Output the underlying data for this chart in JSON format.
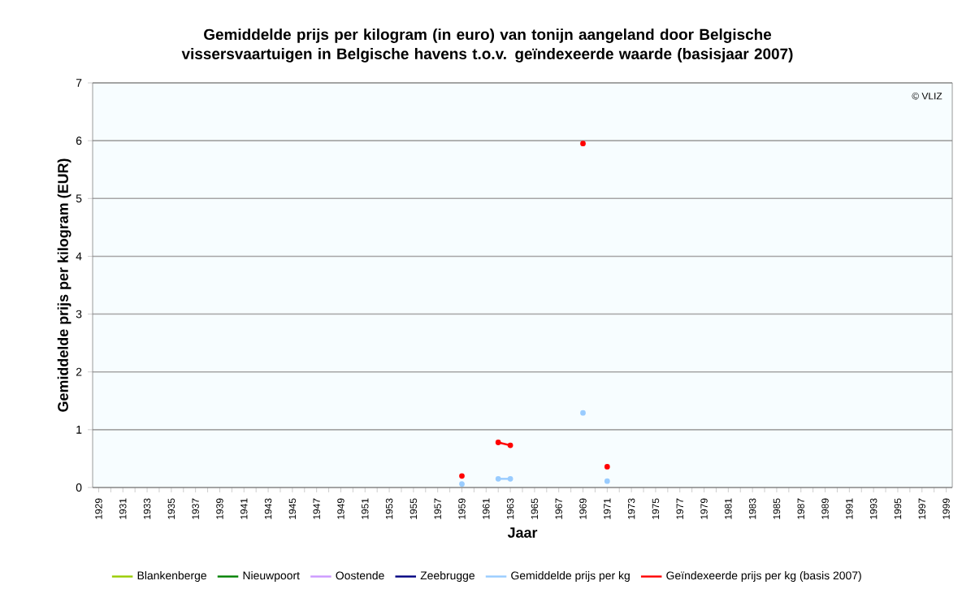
{
  "chart_data": {
    "type": "line",
    "title": "Gemiddelde prijs per kilogram (in euro) van tonijn aangeland door Belgische vissersvaartuigen in Belgische havens t.o.v. geïndexeerde waarde (basisjaar 2007)",
    "xlabel": "Jaar",
    "ylabel": "Gemiddelde prijs per kilogram (EUR)",
    "annotations": [
      "© VLIZ"
    ],
    "categories": [
      "1929",
      null,
      "1931",
      null,
      "1933",
      null,
      "1935",
      null,
      "1937",
      null,
      "1939",
      null,
      "1941",
      null,
      "1943",
      null,
      "1945",
      null,
      "1947",
      null,
      "1949",
      null,
      "1951",
      null,
      "1953",
      null,
      "1955",
      null,
      "1957",
      null,
      "1959",
      null,
      "1961",
      null,
      "1963",
      null,
      "1965",
      null,
      "1967",
      null,
      "1969",
      null,
      "1971",
      null,
      "1973",
      null,
      "1975",
      null,
      "1977",
      null,
      "1979",
      null,
      "1981",
      null,
      "1983",
      null,
      "1985",
      null,
      "1987",
      null,
      "1989",
      null,
      "1991",
      null,
      "1993",
      null,
      "1995",
      null,
      "1997",
      null,
      "1999"
    ],
    "ylim": [
      0,
      7
    ],
    "yticks": [
      0,
      1,
      2,
      3,
      4,
      5,
      6,
      7
    ],
    "grid": "y",
    "legend": "bottom",
    "marker": "circle",
    "series": [
      {
        "name": "Blankenberge",
        "color": "#99cc00",
        "values": [
          null,
          null,
          null,
          null,
          null,
          null,
          null,
          null,
          null,
          null,
          null,
          null,
          null,
          null,
          null,
          null,
          null,
          null,
          null,
          null,
          null,
          null,
          null,
          null,
          null,
          null,
          null,
          null,
          null,
          null,
          null,
          null,
          null,
          null,
          null,
          null,
          null,
          null,
          null,
          null,
          null,
          null,
          null,
          null,
          null,
          null,
          null,
          null,
          null,
          null,
          null,
          null,
          null,
          null,
          null,
          null,
          null,
          null,
          null,
          null,
          null,
          null,
          null,
          null,
          null,
          null,
          null,
          null,
          null,
          null,
          null
        ]
      },
      {
        "name": "Nieuwpoort",
        "color": "#008000",
        "values": [
          null,
          null,
          null,
          null,
          null,
          null,
          null,
          null,
          null,
          null,
          null,
          null,
          null,
          null,
          null,
          null,
          null,
          null,
          null,
          null,
          null,
          null,
          null,
          null,
          null,
          null,
          null,
          null,
          null,
          null,
          null,
          null,
          null,
          null,
          null,
          null,
          null,
          null,
          null,
          null,
          null,
          null,
          null,
          null,
          null,
          null,
          null,
          null,
          null,
          null,
          null,
          null,
          null,
          null,
          null,
          null,
          null,
          null,
          null,
          null,
          null,
          null,
          null,
          null,
          null,
          null,
          null,
          null,
          null,
          null,
          null
        ]
      },
      {
        "name": "Oostende",
        "color": "#cc99ff",
        "values": [
          null,
          null,
          null,
          null,
          null,
          null,
          null,
          null,
          null,
          null,
          null,
          null,
          null,
          null,
          null,
          null,
          null,
          null,
          null,
          null,
          null,
          null,
          null,
          null,
          null,
          null,
          null,
          null,
          null,
          null,
          null,
          null,
          null,
          null,
          null,
          null,
          null,
          null,
          null,
          null,
          null,
          null,
          null,
          null,
          null,
          null,
          null,
          null,
          null,
          null,
          null,
          null,
          null,
          null,
          null,
          null,
          null,
          null,
          null,
          null,
          null,
          null,
          null,
          null,
          null,
          null,
          null,
          null,
          null,
          null,
          null
        ]
      },
      {
        "name": "Zeebrugge",
        "color": "#000080",
        "values": [
          null,
          null,
          null,
          null,
          null,
          null,
          null,
          null,
          null,
          null,
          null,
          null,
          null,
          null,
          null,
          null,
          null,
          null,
          null,
          null,
          null,
          null,
          null,
          null,
          null,
          null,
          null,
          null,
          null,
          null,
          null,
          null,
          null,
          null,
          null,
          null,
          null,
          null,
          null,
          null,
          null,
          null,
          null,
          null,
          null,
          null,
          null,
          null,
          null,
          null,
          null,
          null,
          null,
          null,
          null,
          null,
          null,
          null,
          null,
          null,
          null,
          null,
          null,
          null,
          null,
          null,
          null,
          null,
          null,
          null,
          null
        ]
      },
      {
        "name": "Gemiddelde prijs per kg",
        "color": "#99ccff",
        "values": [
          null,
          null,
          null,
          null,
          null,
          null,
          null,
          null,
          null,
          null,
          null,
          null,
          null,
          null,
          null,
          null,
          null,
          null,
          null,
          null,
          null,
          null,
          null,
          null,
          null,
          null,
          null,
          null,
          null,
          null,
          0.06,
          null,
          null,
          0.15,
          0.15,
          null,
          null,
          null,
          null,
          null,
          1.29,
          null,
          0.11,
          null,
          null,
          null,
          null,
          null,
          null,
          null,
          null,
          null,
          null,
          null,
          null,
          null,
          null,
          null,
          null,
          null,
          null,
          null,
          null,
          null,
          null,
          null,
          null,
          null,
          null,
          null,
          null
        ]
      },
      {
        "name": "Geïndexeerde prijs per kg (basis 2007)",
        "color": "#ff0000",
        "values": [
          null,
          null,
          null,
          null,
          null,
          null,
          null,
          null,
          null,
          null,
          null,
          null,
          null,
          null,
          null,
          null,
          null,
          null,
          null,
          null,
          null,
          null,
          null,
          null,
          null,
          null,
          null,
          null,
          null,
          null,
          0.2,
          null,
          null,
          0.78,
          0.73,
          null,
          null,
          null,
          null,
          null,
          5.95,
          null,
          0.36,
          null,
          null,
          null,
          null,
          null,
          null,
          null,
          null,
          null,
          null,
          null,
          null,
          null,
          null,
          null,
          null,
          null,
          null,
          null,
          null,
          null,
          null,
          null,
          null,
          null,
          null,
          null,
          null
        ]
      }
    ]
  }
}
